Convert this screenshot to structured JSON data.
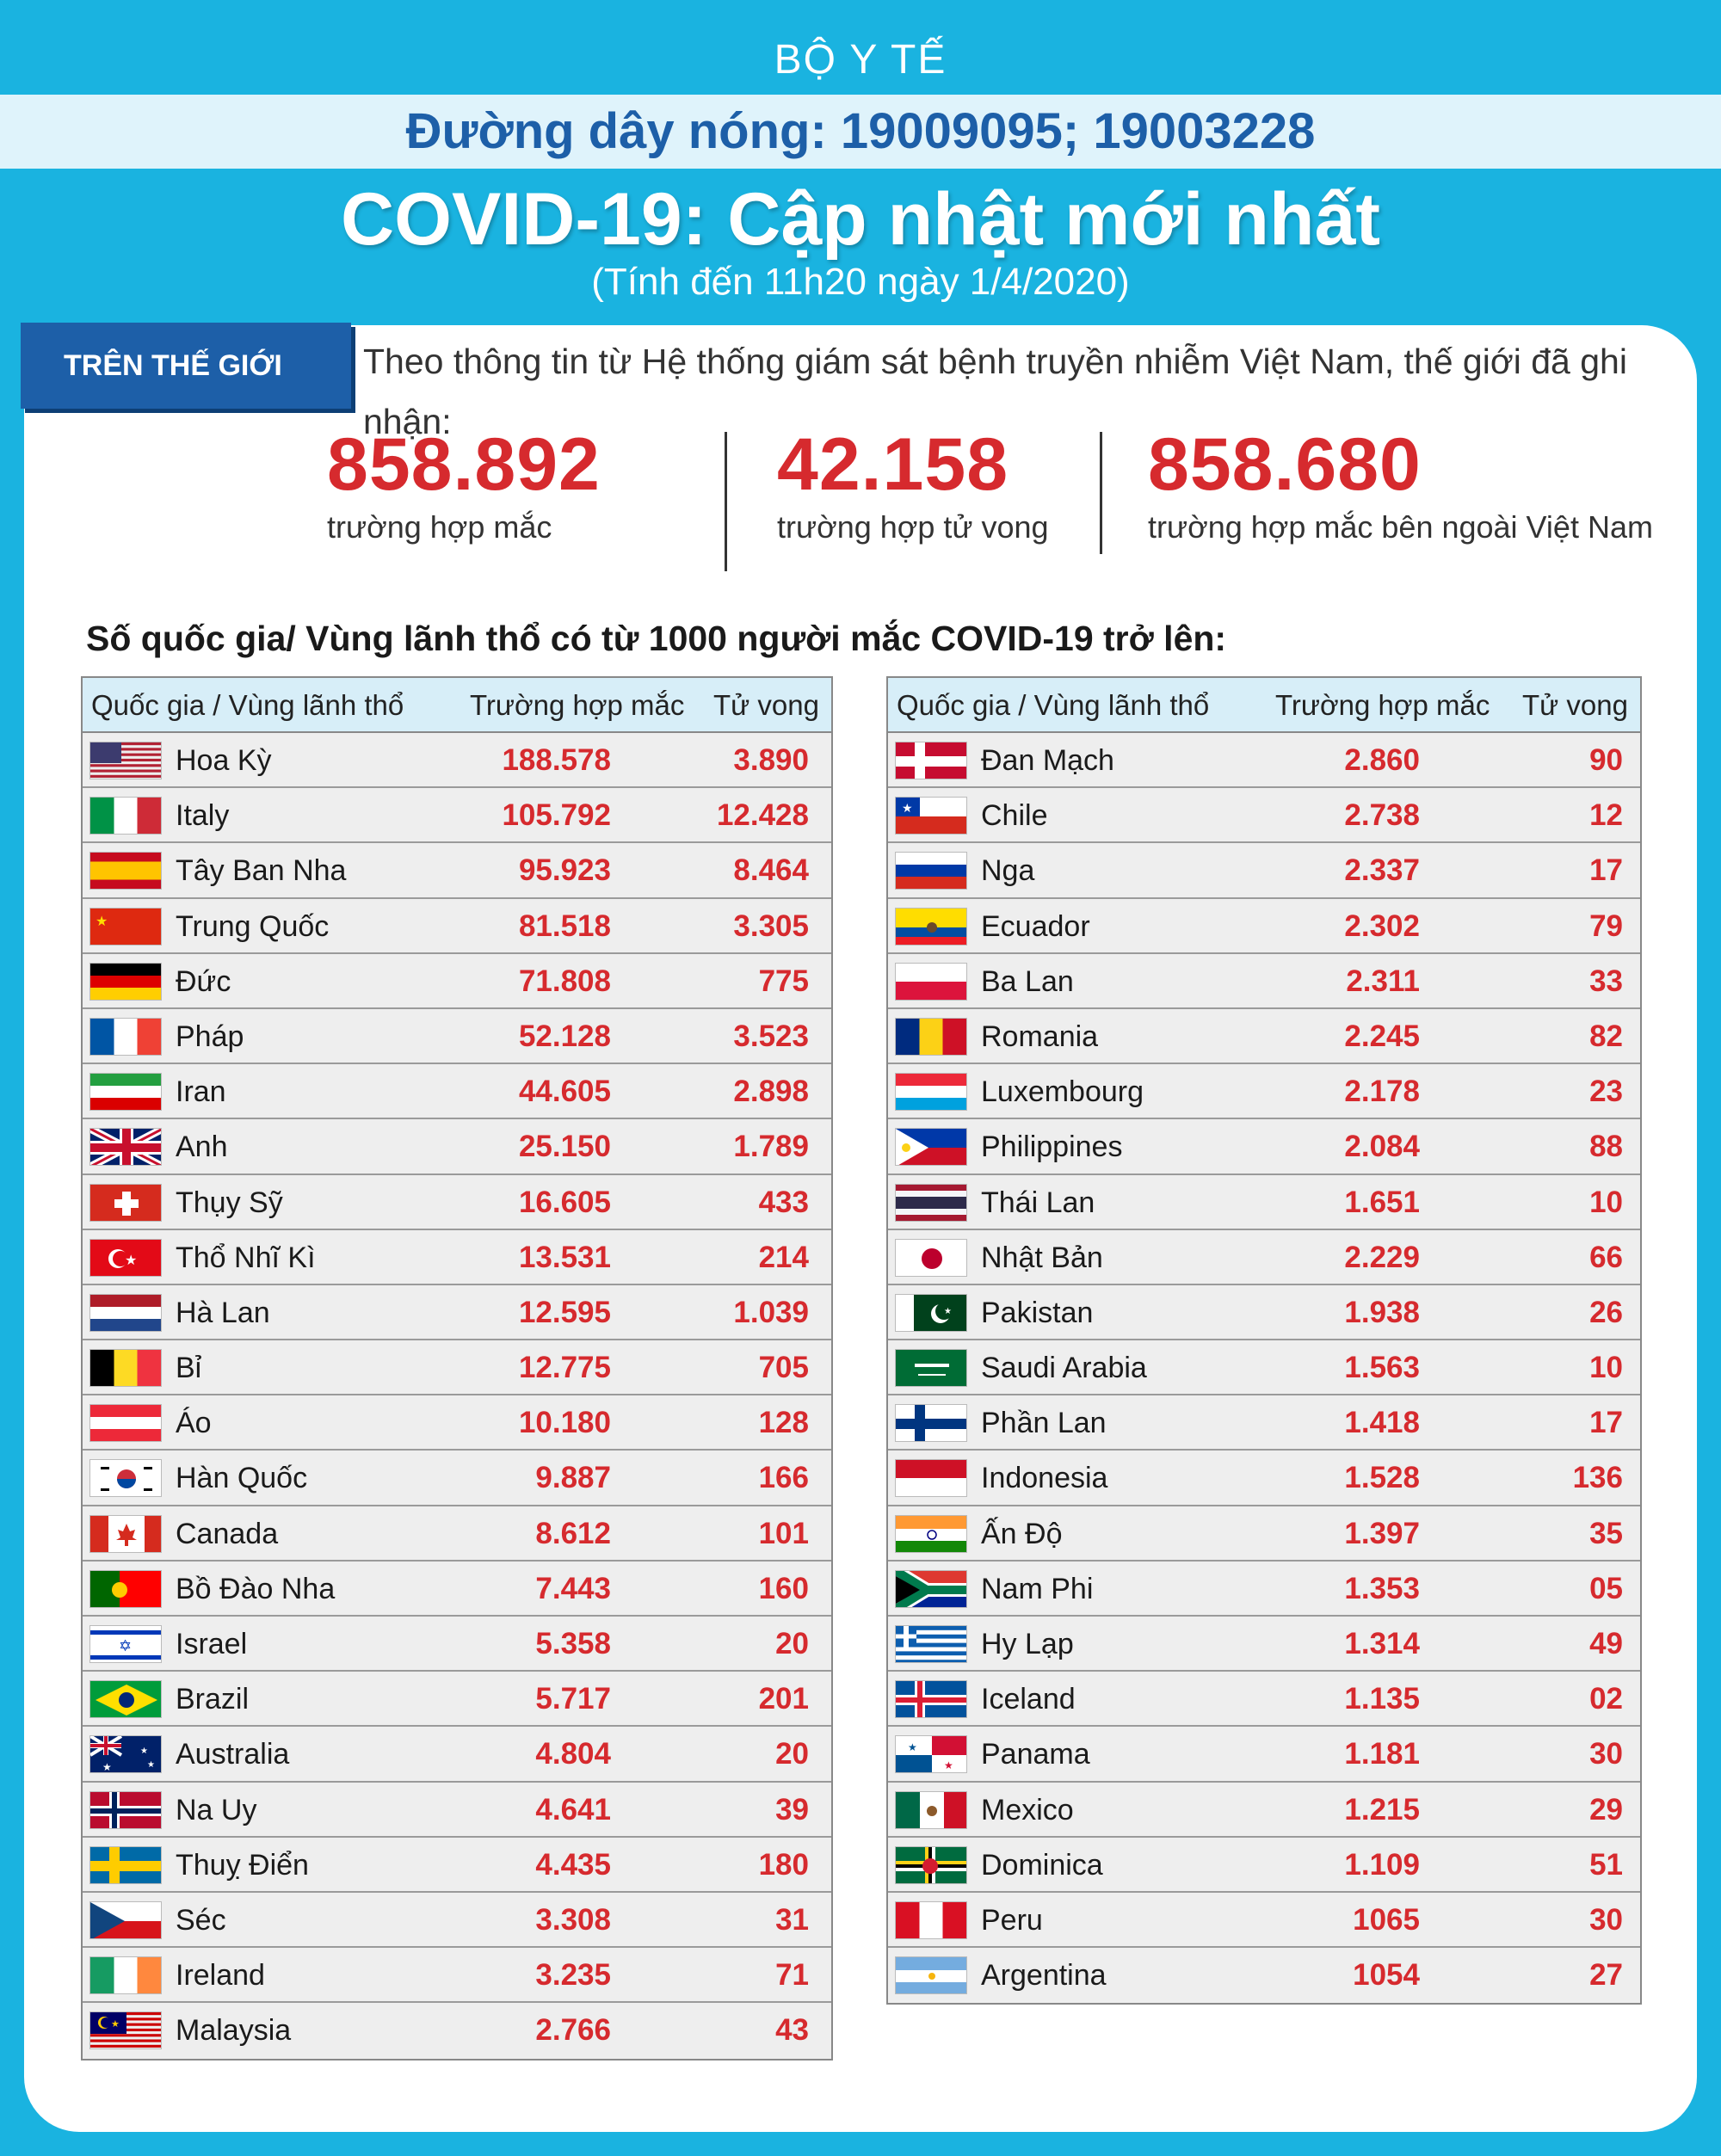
{
  "header": {
    "org": "BỘ Y TẾ",
    "hotline": "Đường dây nóng: 19009095; 19003228",
    "title": "COVID-19: Cập nhật mới nhất",
    "subtitle": "(Tính đến 11h20 ngày 1/4/2020)"
  },
  "world": {
    "tag": "TRÊN THẾ GIỚI",
    "intro": "Theo thông tin từ Hệ thống giám sát bệnh truyền nhiễm Việt Nam, thế giới đã ghi nhận:",
    "stats": [
      {
        "value": "858.892",
        "label": "trường hợp mắc"
      },
      {
        "value": "42.158",
        "label": "trường hợp tử vong"
      },
      {
        "value": "858.680",
        "label": "trường hợp  mắc bên ngoài Việt Nam"
      }
    ]
  },
  "section_title": "Số quốc gia/ Vùng lãnh thổ có từ 1000 người  mắc COVID-19 trở lên:",
  "table_headers": {
    "country": "Quốc gia / Vùng lãnh thổ",
    "cases": "Trường hợp mắc",
    "deaths": "Tử vong"
  },
  "left_table": [
    {
      "flag": "us-flag",
      "country": "Hoa Kỳ",
      "cases": "188.578",
      "deaths": "3.890"
    },
    {
      "flag": "italy-flag",
      "country": "Italy",
      "cases": "105.792",
      "deaths": "12.428"
    },
    {
      "flag": "spain-flag",
      "country": "Tây Ban Nha",
      "cases": "95.923",
      "deaths": "8.464"
    },
    {
      "flag": "china-flag",
      "country": "Trung Quốc",
      "cases": "81.518",
      "deaths": "3.305"
    },
    {
      "flag": "germany-flag",
      "country": "Đức",
      "cases": "71.808",
      "deaths": "775"
    },
    {
      "flag": "france-flag",
      "country": "Pháp",
      "cases": "52.128",
      "deaths": "3.523"
    },
    {
      "flag": "iran-flag",
      "country": "Iran",
      "cases": "44.605",
      "deaths": "2.898"
    },
    {
      "flag": "uk-flag",
      "country": "Anh",
      "cases": "25.150",
      "deaths": "1.789"
    },
    {
      "flag": "switzerland-flag",
      "country": "Thụy Sỹ",
      "cases": "16.605",
      "deaths": "433"
    },
    {
      "flag": "turkey-flag",
      "country": "Thổ Nhĩ Kì",
      "cases": "13.531",
      "deaths": "214"
    },
    {
      "flag": "netherlands-flag",
      "country": "Hà Lan",
      "cases": "12.595",
      "deaths": "1.039"
    },
    {
      "flag": "belgium-flag",
      "country": "Bỉ",
      "cases": "12.775",
      "deaths": "705"
    },
    {
      "flag": "austria-flag",
      "country": "Áo",
      "cases": "10.180",
      "deaths": "128"
    },
    {
      "flag": "korea-flag",
      "country": "Hàn Quốc",
      "cases": "9.887",
      "deaths": "166"
    },
    {
      "flag": "canada-flag",
      "country": "Canada",
      "cases": "8.612",
      "deaths": "101"
    },
    {
      "flag": "portugal-flag",
      "country": "Bồ Đào Nha",
      "cases": "7.443",
      "deaths": "160"
    },
    {
      "flag": "israel-flag",
      "country": "Israel",
      "cases": "5.358",
      "deaths": "20"
    },
    {
      "flag": "brazil-flag",
      "country": "Brazil",
      "cases": "5.717",
      "deaths": "201"
    },
    {
      "flag": "australia-flag",
      "country": "Australia",
      "cases": "4.804",
      "deaths": "20"
    },
    {
      "flag": "norway-flag",
      "country": "Na Uy",
      "cases": "4.641",
      "deaths": "39"
    },
    {
      "flag": "sweden-flag",
      "country": "Thuỵ Điển",
      "cases": "4.435",
      "deaths": "180"
    },
    {
      "flag": "czech-flag",
      "country": "Séc",
      "cases": "3.308",
      "deaths": "31"
    },
    {
      "flag": "ireland-flag",
      "country": "Ireland",
      "cases": "3.235",
      "deaths": "71"
    },
    {
      "flag": "malaysia-flag",
      "country": "Malaysia",
      "cases": "2.766",
      "deaths": "43"
    }
  ],
  "right_table": [
    {
      "flag": "denmark-flag",
      "country": "Đan Mạch",
      "cases": "2.860",
      "deaths": "90"
    },
    {
      "flag": "chile-flag",
      "country": "Chile",
      "cases": "2.738",
      "deaths": "12"
    },
    {
      "flag": "russia-flag",
      "country": "Nga",
      "cases": "2.337",
      "deaths": "17"
    },
    {
      "flag": "ecuador-flag",
      "country": "Ecuador",
      "cases": "2.302",
      "deaths": "79"
    },
    {
      "flag": "poland-flag",
      "country": "Ba Lan",
      "cases": "2.311",
      "deaths": "33"
    },
    {
      "flag": "romania-flag",
      "country": "Romania",
      "cases": "2.245",
      "deaths": "82"
    },
    {
      "flag": "luxembourg-flag",
      "country": "Luxembourg",
      "cases": "2.178",
      "deaths": "23"
    },
    {
      "flag": "philippines-flag",
      "country": "Philippines",
      "cases": "2.084",
      "deaths": "88"
    },
    {
      "flag": "thailand-flag",
      "country": "Thái Lan",
      "cases": "1.651",
      "deaths": "10"
    },
    {
      "flag": "japan-flag",
      "country": "Nhật Bản",
      "cases": "2.229",
      "deaths": "66"
    },
    {
      "flag": "pakistan-flag",
      "country": "Pakistan",
      "cases": "1.938",
      "deaths": "26"
    },
    {
      "flag": "saudi-arabia-flag",
      "country": "Saudi Arabia",
      "cases": "1.563",
      "deaths": "10"
    },
    {
      "flag": "finland-flag",
      "country": "Phần Lan",
      "cases": "1.418",
      "deaths": "17"
    },
    {
      "flag": "indonesia-flag",
      "country": "Indonesia",
      "cases": "1.528",
      "deaths": "136"
    },
    {
      "flag": "india-flag",
      "country": "Ấn Độ",
      "cases": "1.397",
      "deaths": "35"
    },
    {
      "flag": "south-africa-flag",
      "country": "Nam Phi",
      "cases": "1.353",
      "deaths": "05"
    },
    {
      "flag": "greece-flag",
      "country": "Hy Lạp",
      "cases": "1.314",
      "deaths": "49"
    },
    {
      "flag": "iceland-flag",
      "country": "Iceland",
      "cases": "1.135",
      "deaths": "02"
    },
    {
      "flag": "panama-flag",
      "country": "Panama",
      "cases": "1.181",
      "deaths": "30"
    },
    {
      "flag": "mexico-flag",
      "country": "Mexico",
      "cases": "1.215",
      "deaths": "29"
    },
    {
      "flag": "dominica-flag",
      "country": "Dominica",
      "cases": "1.109",
      "deaths": "51"
    },
    {
      "flag": "peru-flag",
      "country": "Peru",
      "cases": "1065",
      "deaths": "30"
    },
    {
      "flag": "argentina-flag",
      "country": "Argentina",
      "cases": "1054",
      "deaths": "27"
    }
  ]
}
